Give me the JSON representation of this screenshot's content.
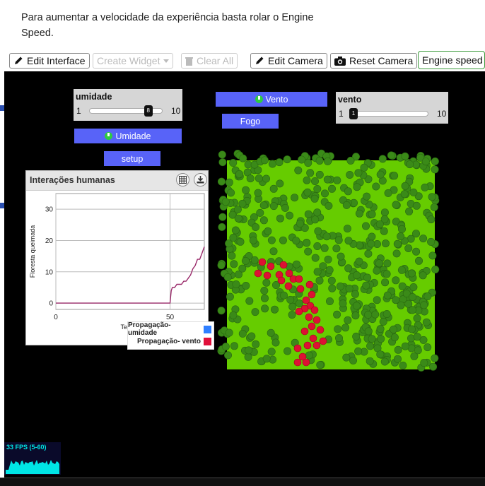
{
  "intro": {
    "line1": "Para aumentar a velocidade da experiência basta rolar o Engine",
    "line2": "Speed."
  },
  "toolbar": {
    "edit_interface": "Edit Interface",
    "create_widget": "Create Widget",
    "clear_all": "Clear All",
    "edit_camera": "Edit Camera",
    "reset_camera": "Reset Camera",
    "engine_speed": "Engine speed"
  },
  "sliders": {
    "umidade": {
      "name": "umidade",
      "min": "1",
      "max": "10",
      "value": "8",
      "value_num": 8
    },
    "vento": {
      "name": "vento",
      "min": "1",
      "max": "10",
      "value": "1",
      "value_num": 1
    }
  },
  "buttons": {
    "vento": "Vento",
    "fogo": "Fogo",
    "umidade": "Umidade",
    "setup": "setup"
  },
  "plot": {
    "title": "Interações humanas",
    "legend": [
      {
        "label": "Propagação- umidade",
        "color": "#2f7fff"
      },
      {
        "label": "Propagação- vento",
        "color": "#e0103a"
      }
    ]
  },
  "fps": {
    "label": "33 FPS (5-60)"
  },
  "colors": {
    "button": "#5863f8",
    "world": "#66cc00",
    "tree": "#3a8a18",
    "fire": "#dd1133",
    "series_line": "#9a2a6a"
  },
  "icons": {
    "edit": "pencil-icon",
    "camera": "camera-icon",
    "trash": "trash-icon",
    "table": "table-icon",
    "download": "download-icon",
    "power": "power-icon"
  },
  "chart_data": {
    "type": "line",
    "title": "",
    "xlabel": "Tempo",
    "ylabel": "Floresta queimada",
    "xlim": [
      0,
      65
    ],
    "ylim": [
      -2,
      35
    ],
    "x_ticks": [
      0,
      50
    ],
    "y_ticks": [
      0,
      10,
      20,
      30
    ],
    "grid": true,
    "series": [
      {
        "name": "Propagação- vento",
        "points": [
          [
            0,
            0
          ],
          [
            50,
            0
          ],
          [
            50.5,
            4
          ],
          [
            51,
            5
          ],
          [
            52,
            5
          ],
          [
            53,
            6
          ],
          [
            55,
            6
          ],
          [
            56,
            7
          ],
          [
            57,
            7
          ],
          [
            58,
            8
          ],
          [
            59,
            9
          ],
          [
            60,
            11
          ],
          [
            61,
            12
          ],
          [
            62,
            14
          ],
          [
            63,
            14
          ],
          [
            64,
            16
          ],
          [
            64.5,
            17
          ],
          [
            65,
            18
          ]
        ]
      }
    ]
  }
}
